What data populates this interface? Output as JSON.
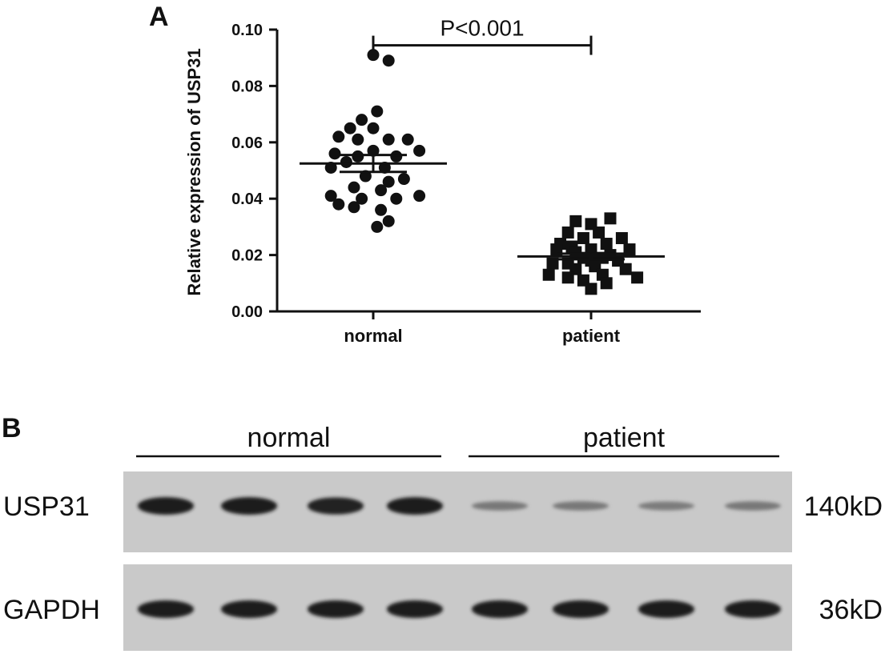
{
  "panel_a_label": "A",
  "panel_b_label": "B",
  "chart_data": {
    "type": "scatter",
    "title": "",
    "xlabel": "",
    "ylabel": "Relative expression of USP31",
    "ylim": [
      0,
      0.1
    ],
    "yticks": [
      "0.00",
      "0.02",
      "0.04",
      "0.06",
      "0.08",
      "0.10"
    ],
    "categories": [
      "normal",
      "patient"
    ],
    "series": [
      {
        "name": "normal",
        "marker": "circle",
        "mean": 0.0525,
        "sem": 0.003,
        "points": [
          [
            0.0,
            0.091
          ],
          [
            0.4,
            0.089
          ],
          [
            0.1,
            0.071
          ],
          [
            -0.3,
            0.068
          ],
          [
            -0.6,
            0.065
          ],
          [
            0.0,
            0.065
          ],
          [
            -0.9,
            0.062
          ],
          [
            0.9,
            0.061
          ],
          [
            -0.4,
            0.061
          ],
          [
            0.4,
            0.061
          ],
          [
            -1.0,
            0.056
          ],
          [
            1.2,
            0.057
          ],
          [
            0.0,
            0.057
          ],
          [
            -0.4,
            0.055
          ],
          [
            0.6,
            0.055
          ],
          [
            -0.7,
            0.053
          ],
          [
            -1.1,
            0.051
          ],
          [
            0.3,
            0.051
          ],
          [
            -0.2,
            0.048
          ],
          [
            0.8,
            0.047
          ],
          [
            0.4,
            0.046
          ],
          [
            -0.5,
            0.044
          ],
          [
            0.2,
            0.043
          ],
          [
            -1.1,
            0.041
          ],
          [
            1.2,
            0.041
          ],
          [
            -0.3,
            0.04
          ],
          [
            0.6,
            0.04
          ],
          [
            -0.9,
            0.038
          ],
          [
            -0.5,
            0.037
          ],
          [
            0.2,
            0.036
          ],
          [
            0.4,
            0.032
          ],
          [
            0.1,
            0.03
          ]
        ]
      },
      {
        "name": "patient",
        "marker": "square",
        "mean": 0.0195,
        "sem": 0.001,
        "points": [
          [
            -0.4,
            0.032
          ],
          [
            0.0,
            0.031
          ],
          [
            0.5,
            0.033
          ],
          [
            -0.6,
            0.028
          ],
          [
            0.2,
            0.028
          ],
          [
            -0.2,
            0.026
          ],
          [
            0.8,
            0.026
          ],
          [
            -0.8,
            0.024
          ],
          [
            0.4,
            0.024
          ],
          [
            -0.5,
            0.023
          ],
          [
            -0.9,
            0.022
          ],
          [
            0.0,
            0.022
          ],
          [
            1.0,
            0.022
          ],
          [
            -0.4,
            0.021
          ],
          [
            0.5,
            0.02
          ],
          [
            -0.2,
            0.019
          ],
          [
            0.3,
            0.019
          ],
          [
            0.0,
            0.018
          ],
          [
            0.7,
            0.018
          ],
          [
            -0.6,
            0.017
          ],
          [
            -1.0,
            0.017
          ],
          [
            0.1,
            0.016
          ],
          [
            -0.4,
            0.015
          ],
          [
            0.9,
            0.015
          ],
          [
            -1.1,
            0.013
          ],
          [
            0.3,
            0.013
          ],
          [
            -0.6,
            0.012
          ],
          [
            1.2,
            0.012
          ],
          [
            -0.2,
            0.011
          ],
          [
            0.4,
            0.01
          ],
          [
            0.0,
            0.008
          ]
        ]
      }
    ],
    "annotation": {
      "text": "P<0.001",
      "between": [
        "normal",
        "patient"
      ],
      "y": 0.095
    }
  },
  "blot": {
    "groups": [
      {
        "label": "normal",
        "lanes": 4
      },
      {
        "label": "patient",
        "lanes": 4
      }
    ],
    "rows": [
      {
        "name": "USP31",
        "size": "140kD",
        "intensities": [
          1.0,
          1.0,
          0.95,
          1.0,
          0.25,
          0.25,
          0.22,
          0.25
        ]
      },
      {
        "name": "GAPDH",
        "size": "36kD",
        "intensities": [
          1.0,
          1.0,
          1.0,
          1.0,
          1.0,
          1.0,
          1.0,
          1.0
        ]
      }
    ]
  }
}
